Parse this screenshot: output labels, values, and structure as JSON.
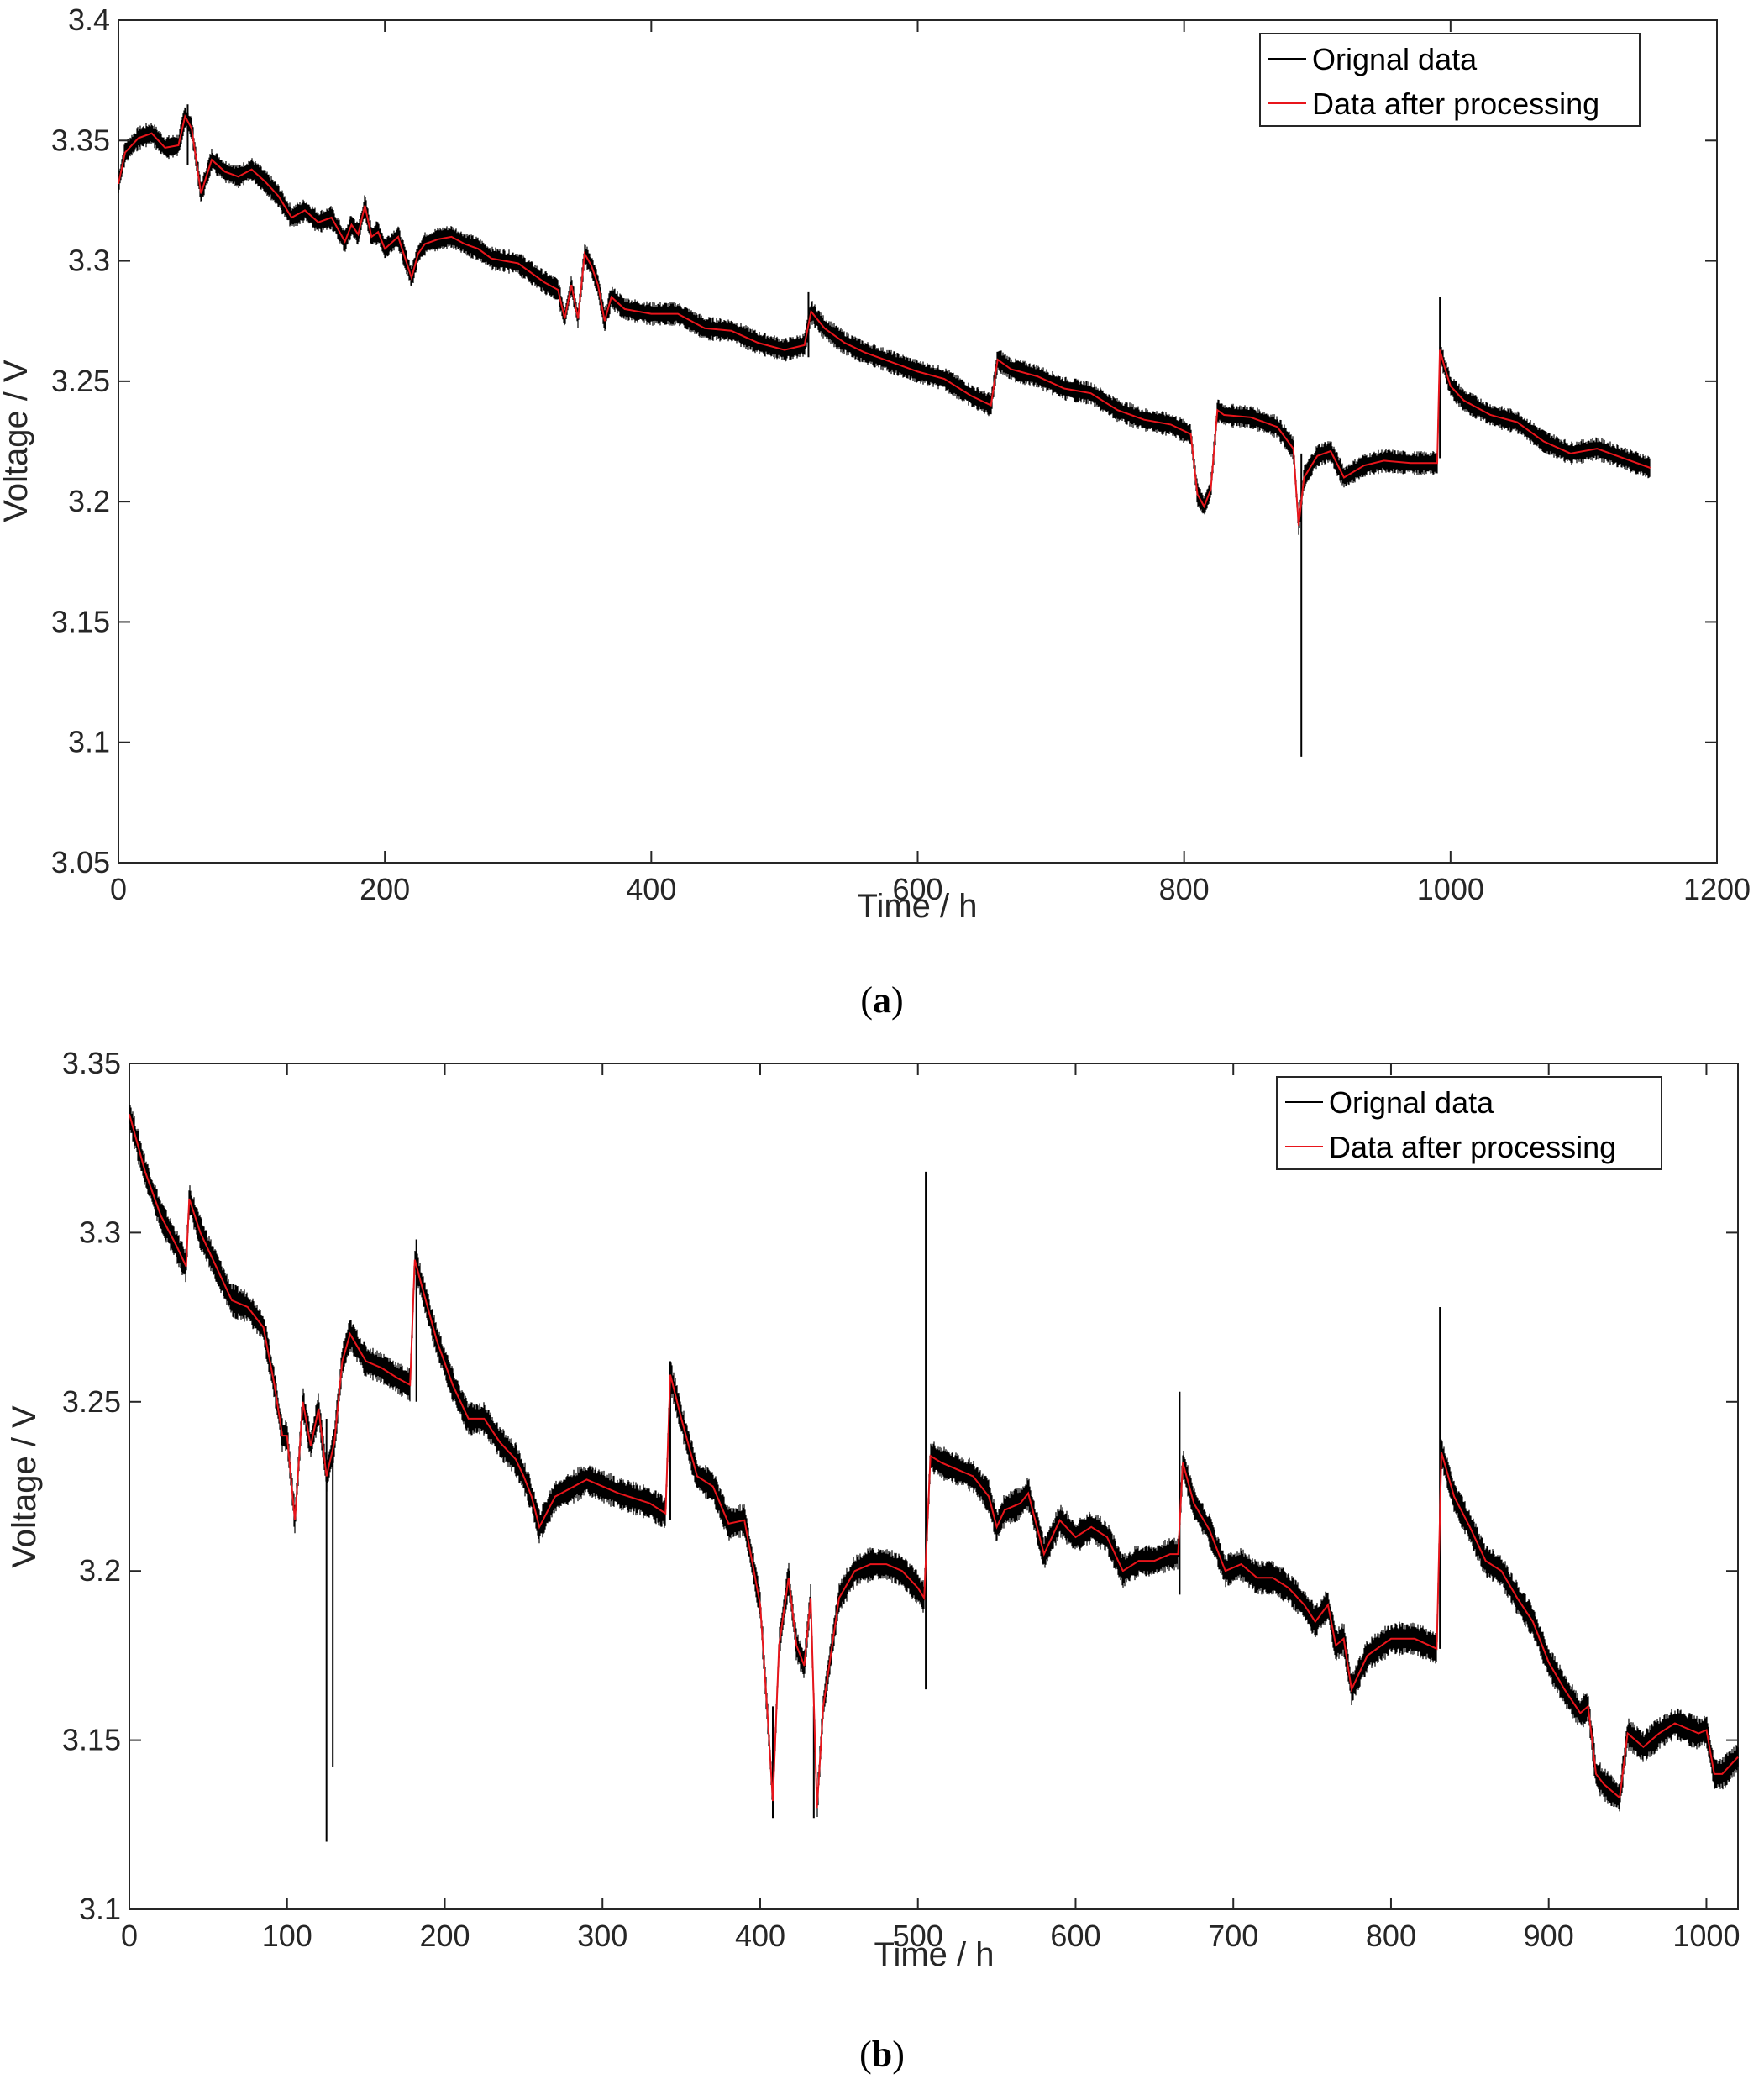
{
  "colors": {
    "original": "#000000",
    "processed": "#e8151b",
    "axis": "#262626"
  },
  "chart_data": [
    {
      "id": "a",
      "type": "line",
      "caption_letter": "a",
      "xlabel": "Time / h",
      "ylabel": "Voltage / V",
      "xlim": [
        0,
        1200
      ],
      "ylim": [
        3.05,
        3.4
      ],
      "xticks": [
        0,
        200,
        400,
        600,
        800,
        1000,
        1200
      ],
      "yticks": [
        3.05,
        3.1,
        3.15,
        3.2,
        3.25,
        3.3,
        3.35,
        3.4
      ],
      "xtick_labels": [
        "0",
        "200",
        "400",
        "600",
        "800",
        "1000",
        "1200"
      ],
      "ytick_labels": [
        "3.05",
        "3.1",
        "3.15",
        "3.2",
        "3.25",
        "3.3",
        "3.35",
        "3.4"
      ],
      "legend": {
        "position": "top-right",
        "entries": [
          "Orignal data",
          "Data after processing"
        ]
      },
      "series": [
        {
          "name": "Data after processing",
          "x": [
            0,
            5,
            15,
            25,
            35,
            45,
            50,
            55,
            62,
            70,
            80,
            90,
            100,
            110,
            120,
            130,
            140,
            150,
            160,
            170,
            175,
            180,
            185,
            190,
            195,
            200,
            210,
            220,
            225,
            230,
            240,
            250,
            260,
            270,
            280,
            290,
            300,
            310,
            320,
            330,
            335,
            340,
            345,
            350,
            355,
            360,
            365,
            370,
            380,
            390,
            400,
            420,
            440,
            460,
            480,
            500,
            515,
            520,
            530,
            545,
            560,
            580,
            600,
            620,
            640,
            655,
            660,
            670,
            690,
            710,
            730,
            750,
            770,
            790,
            805,
            810,
            815,
            820,
            825,
            830,
            850,
            870,
            882,
            886,
            890,
            900,
            910,
            920,
            935,
            950,
            970,
            990,
            992,
            996,
            1000,
            1010,
            1030,
            1050,
            1070,
            1090,
            1110,
            1130,
            1150
          ],
          "y": [
            3.332,
            3.345,
            3.351,
            3.353,
            3.347,
            3.348,
            3.36,
            3.355,
            3.328,
            3.342,
            3.337,
            3.335,
            3.338,
            3.333,
            3.327,
            3.318,
            3.321,
            3.316,
            3.318,
            3.308,
            3.315,
            3.311,
            3.323,
            3.31,
            3.312,
            3.305,
            3.31,
            3.293,
            3.303,
            3.307,
            3.309,
            3.31,
            3.307,
            3.305,
            3.301,
            3.3,
            3.299,
            3.295,
            3.291,
            3.288,
            3.276,
            3.29,
            3.276,
            3.303,
            3.298,
            3.29,
            3.275,
            3.285,
            3.28,
            3.279,
            3.278,
            3.278,
            3.272,
            3.271,
            3.266,
            3.263,
            3.265,
            3.279,
            3.272,
            3.266,
            3.262,
            3.258,
            3.254,
            3.251,
            3.244,
            3.24,
            3.259,
            3.255,
            3.252,
            3.247,
            3.245,
            3.238,
            3.234,
            3.232,
            3.228,
            3.203,
            3.198,
            3.205,
            3.238,
            3.236,
            3.235,
            3.231,
            3.222,
            3.19,
            3.21,
            3.219,
            3.221,
            3.21,
            3.215,
            3.217,
            3.216,
            3.216,
            3.263,
            3.255,
            3.248,
            3.242,
            3.236,
            3.233,
            3.225,
            3.22,
            3.222,
            3.218,
            3.214
          ]
        },
        {
          "name": "Orignal data",
          "band_width": 0.005,
          "spikes": [
            {
              "x": 888,
              "low": 3.094,
              "high": 3.22
            },
            {
              "x": 992,
              "low": 3.218,
              "high": 3.285
            },
            {
              "x": 52,
              "low": 3.34,
              "high": 3.365
            },
            {
              "x": 518,
              "low": 3.26,
              "high": 3.287
            }
          ]
        }
      ]
    },
    {
      "id": "b",
      "type": "line",
      "caption_letter": "b",
      "xlabel": "Time / h",
      "ylabel": "Voltage / V",
      "xlim": [
        0,
        1020
      ],
      "ylim": [
        3.1,
        3.35
      ],
      "xticks": [
        0,
        100,
        200,
        300,
        400,
        500,
        600,
        700,
        800,
        900,
        1000
      ],
      "yticks": [
        3.1,
        3.15,
        3.2,
        3.25,
        3.3,
        3.35
      ],
      "xtick_labels": [
        "0",
        "100",
        "200",
        "300",
        "400",
        "500",
        "600",
        "700",
        "800",
        "900",
        "1000"
      ],
      "ytick_labels": [
        "3.1",
        "3.15",
        "3.2",
        "3.25",
        "3.3",
        "3.35"
      ],
      "legend": {
        "position": "top-right",
        "entries": [
          "Orignal data",
          "Data after processing"
        ]
      },
      "series": [
        {
          "name": "Data after processing",
          "x": [
            0,
            10,
            20,
            30,
            36,
            38,
            45,
            55,
            65,
            75,
            85,
            92,
            97,
            100,
            105,
            110,
            115,
            120,
            125,
            130,
            135,
            140,
            150,
            160,
            170,
            178,
            181,
            185,
            195,
            205,
            215,
            225,
            235,
            245,
            250,
            255,
            260,
            270,
            290,
            310,
            330,
            340,
            343,
            350,
            360,
            370,
            380,
            390,
            400,
            405,
            408,
            412,
            418,
            423,
            428,
            432,
            436,
            440,
            450,
            460,
            470,
            480,
            490,
            500,
            504,
            508,
            515,
            525,
            535,
            545,
            550,
            555,
            565,
            570,
            580,
            590,
            600,
            610,
            620,
            630,
            640,
            650,
            660,
            665,
            668,
            675,
            685,
            695,
            705,
            715,
            725,
            735,
            745,
            752,
            760,
            765,
            770,
            775,
            785,
            800,
            815,
            829,
            832,
            840,
            850,
            860,
            870,
            880,
            890,
            900,
            910,
            920,
            925,
            930,
            935,
            945,
            950,
            960,
            970,
            980,
            990,
            995,
            1000,
            1005,
            1010,
            1020
          ],
          "y": [
            3.335,
            3.318,
            3.305,
            3.296,
            3.29,
            3.31,
            3.3,
            3.29,
            3.28,
            3.278,
            3.272,
            3.255,
            3.24,
            3.24,
            3.215,
            3.25,
            3.237,
            3.248,
            3.228,
            3.238,
            3.262,
            3.27,
            3.262,
            3.26,
            3.257,
            3.255,
            3.292,
            3.285,
            3.268,
            3.255,
            3.245,
            3.245,
            3.238,
            3.233,
            3.228,
            3.222,
            3.213,
            3.222,
            3.227,
            3.223,
            3.22,
            3.217,
            3.258,
            3.245,
            3.228,
            3.225,
            3.214,
            3.215,
            3.19,
            3.155,
            3.132,
            3.178,
            3.198,
            3.178,
            3.172,
            3.192,
            3.13,
            3.16,
            3.192,
            3.2,
            3.202,
            3.202,
            3.2,
            3.195,
            3.192,
            3.234,
            3.232,
            3.23,
            3.228,
            3.222,
            3.213,
            3.218,
            3.22,
            3.223,
            3.205,
            3.215,
            3.21,
            3.213,
            3.21,
            3.2,
            3.203,
            3.203,
            3.205,
            3.205,
            3.232,
            3.22,
            3.212,
            3.2,
            3.202,
            3.198,
            3.198,
            3.195,
            3.19,
            3.185,
            3.19,
            3.178,
            3.18,
            3.165,
            3.175,
            3.18,
            3.18,
            3.177,
            3.235,
            3.222,
            3.213,
            3.203,
            3.2,
            3.192,
            3.185,
            3.173,
            3.165,
            3.158,
            3.16,
            3.14,
            3.137,
            3.133,
            3.152,
            3.148,
            3.152,
            3.155,
            3.153,
            3.152,
            3.153,
            3.14,
            3.14,
            3.145
          ]
        },
        {
          "name": "Orignal data",
          "band_width": 0.005,
          "spikes": [
            {
              "x": 125,
              "low": 3.12,
              "high": 3.245
            },
            {
              "x": 129,
              "low": 3.142,
              "high": 3.24
            },
            {
              "x": 505,
              "low": 3.165,
              "high": 3.318
            },
            {
              "x": 666,
              "low": 3.193,
              "high": 3.253
            },
            {
              "x": 831,
              "low": 3.177,
              "high": 3.278
            },
            {
              "x": 182,
              "low": 3.25,
              "high": 3.298
            },
            {
              "x": 343,
              "low": 3.215,
              "high": 3.262
            },
            {
              "x": 408,
              "low": 3.127,
              "high": 3.16
            },
            {
              "x": 434,
              "low": 3.127,
              "high": 3.16
            }
          ]
        }
      ]
    }
  ]
}
